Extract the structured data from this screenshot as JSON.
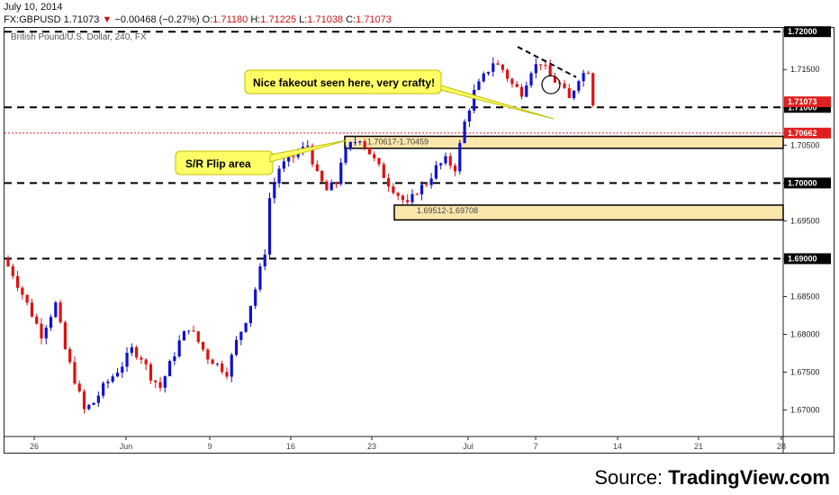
{
  "header": {
    "date": "July 10, 2014",
    "symbol": "FX:GBPUSD",
    "last": "1.71073",
    "change_arrow": "▼",
    "change": "−0.00468 (−0.27%)",
    "open_label": "O:",
    "open": "1.71180",
    "high_label": "H:",
    "high": "1.71225",
    "low_label": "L:",
    "low": "1.71038",
    "close_label": "C:",
    "close": "1.71073"
  },
  "chart_title": "British Pound/U.S. Dollar, 240, FX",
  "source_prefix": "Source: ",
  "source_brand": "TradingView.com",
  "colors": {
    "up": "#1010d0",
    "down": "#e01010",
    "zone": "#fbe7ac",
    "callout": "#ffff66"
  },
  "chart_data": {
    "type": "candlestick",
    "title": "British Pound/U.S. Dollar, 240, FX",
    "ylim": [
      1.6665,
      1.7205
    ],
    "y_ticks": [
      "1.67000",
      "1.67500",
      "1.68000",
      "1.68500",
      "1.69000",
      "1.69500",
      "1.70000",
      "1.70500",
      "1.71000",
      "1.71500",
      "1.72000"
    ],
    "x_ticks": [
      "26",
      "Jun",
      "9",
      "16",
      "23",
      "Jul",
      "7",
      "14",
      "21",
      "28"
    ],
    "price_path": [
      [
        0,
        1.69
      ],
      [
        2,
        1.688
      ],
      [
        5,
        1.684
      ],
      [
        8,
        1.68
      ],
      [
        11,
        1.684
      ],
      [
        13,
        1.678
      ],
      [
        15,
        1.674
      ],
      [
        17,
        1.67
      ],
      [
        19,
        1.671
      ],
      [
        21,
        1.673
      ],
      [
        23,
        1.6745
      ],
      [
        25,
        1.676
      ],
      [
        27,
        1.678
      ],
      [
        29,
        1.677
      ],
      [
        31,
        1.6745
      ],
      [
        33,
        1.673
      ],
      [
        35,
        1.676
      ],
      [
        37,
        1.679
      ],
      [
        39,
        1.681
      ],
      [
        41,
        1.679
      ],
      [
        43,
        1.677
      ],
      [
        45,
        1.676
      ],
      [
        47,
        1.675
      ],
      [
        49,
        1.679
      ],
      [
        51,
        1.682
      ],
      [
        53,
        1.686
      ],
      [
        55,
        1.691
      ],
      [
        56,
        1.698
      ],
      [
        58,
        1.702
      ],
      [
        60,
        1.703
      ],
      [
        62,
        1.704
      ],
      [
        64,
        1.705
      ],
      [
        66,
        1.701
      ],
      [
        68,
        1.699
      ],
      [
        70,
        1.7
      ],
      [
        71,
        1.703
      ],
      [
        73,
        1.705
      ],
      [
        75,
        1.706
      ],
      [
        77,
        1.704
      ],
      [
        79,
        1.702
      ],
      [
        81,
        1.7
      ],
      [
        83,
        1.6985
      ],
      [
        85,
        1.697
      ],
      [
        87,
        1.699
      ],
      [
        89,
        1.7
      ],
      [
        91,
        1.702
      ],
      [
        93,
        1.703
      ],
      [
        95,
        1.702
      ],
      [
        97,
        1.708
      ],
      [
        99,
        1.712
      ],
      [
        101,
        1.714
      ],
      [
        103,
        1.716
      ],
      [
        105,
        1.715
      ],
      [
        107,
        1.713
      ],
      [
        109,
        1.712
      ],
      [
        111,
        1.715
      ],
      [
        113,
        1.716
      ],
      [
        115,
        1.714
      ],
      [
        117,
        1.713
      ],
      [
        119,
        1.711
      ],
      [
        121,
        1.714
      ],
      [
        123,
        1.715
      ],
      [
        124,
        1.7107
      ]
    ],
    "horizontal_levels": [
      {
        "price": 1.72,
        "style": "dashed-black",
        "label": "1.72000"
      },
      {
        "price": 1.71,
        "style": "dashed-black",
        "label": "1.71000"
      },
      {
        "price": 1.7066,
        "style": "dotted-red",
        "label": "1.70662"
      },
      {
        "price": 1.7,
        "style": "dashed-black",
        "label": "1.70000"
      },
      {
        "price": 1.69,
        "style": "dashed-black",
        "label": "1.69000"
      }
    ],
    "last_price_label": "1.71073",
    "zones": [
      {
        "label": "1.70617-1.70459",
        "top": 1.70617,
        "bottom": 1.70459
      },
      {
        "label": "1.69512-1.69708",
        "top": 1.69708,
        "bottom": 1.69512
      }
    ],
    "annotations": [
      {
        "text": "Nice fakeout seen here, very crafty!"
      },
      {
        "text": "S/R Flip area"
      }
    ]
  }
}
